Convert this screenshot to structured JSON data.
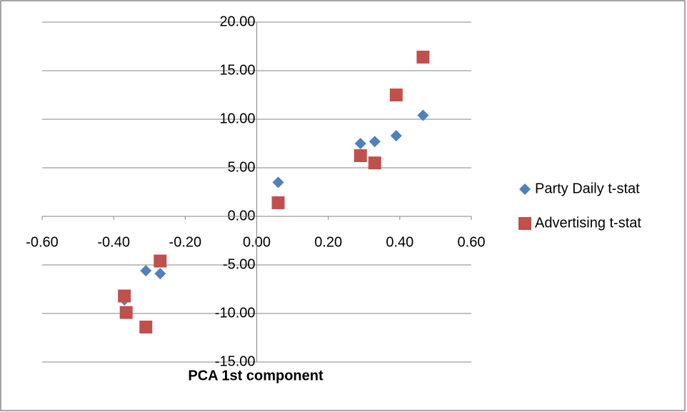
{
  "chart_data": {
    "type": "scatter",
    "x_label": "PCA 1st component",
    "xlim": [
      -0.6,
      0.6
    ],
    "xticks": [
      {
        "value": -0.6,
        "label": "-0.60"
      },
      {
        "value": -0.4,
        "label": "-0.40"
      },
      {
        "value": -0.2,
        "label": "-0.20"
      },
      {
        "value": 0,
        "label": "0.00"
      },
      {
        "value": 0.2,
        "label": "0.20"
      },
      {
        "value": 0.4,
        "label": "0.40"
      },
      {
        "value": 0.6,
        "label": "0.60"
      }
    ],
    "ylim": [
      -15,
      20
    ],
    "yticks": [
      {
        "value": -15,
        "label": "-15.00"
      },
      {
        "value": -10,
        "label": "-10.00"
      },
      {
        "value": -5,
        "label": "-5.00"
      },
      {
        "value": 0,
        "label": "0.00"
      },
      {
        "value": 5,
        "label": "5.00"
      },
      {
        "value": 10,
        "label": "10.00"
      },
      {
        "value": 15,
        "label": "15.00"
      },
      {
        "value": 20,
        "label": "20.00"
      }
    ],
    "grid": true,
    "legend": "right",
    "series": [
      {
        "name": "Party Daily t-stat",
        "color": "#4f81bd",
        "marker": "diamond",
        "x": [
          0.06,
          0.29,
          0.33,
          0.39,
          0.465,
          -0.27,
          -0.37,
          -0.365,
          -0.31
        ],
        "values": [
          3.5,
          7.5,
          7.7,
          8.3,
          10.4,
          -5.9,
          -8.6,
          -9.8,
          -5.6
        ]
      },
      {
        "name": "Advertising t-stat",
        "color": "#c0504d",
        "marker": "square",
        "x": [
          0.06,
          0.29,
          0.33,
          0.39,
          0.465,
          -0.27,
          -0.37,
          -0.365,
          -0.31
        ],
        "values": [
          1.4,
          6.25,
          5.5,
          12.5,
          16.4,
          -4.6,
          -8.2,
          -9.9,
          -11.4
        ]
      }
    ]
  }
}
